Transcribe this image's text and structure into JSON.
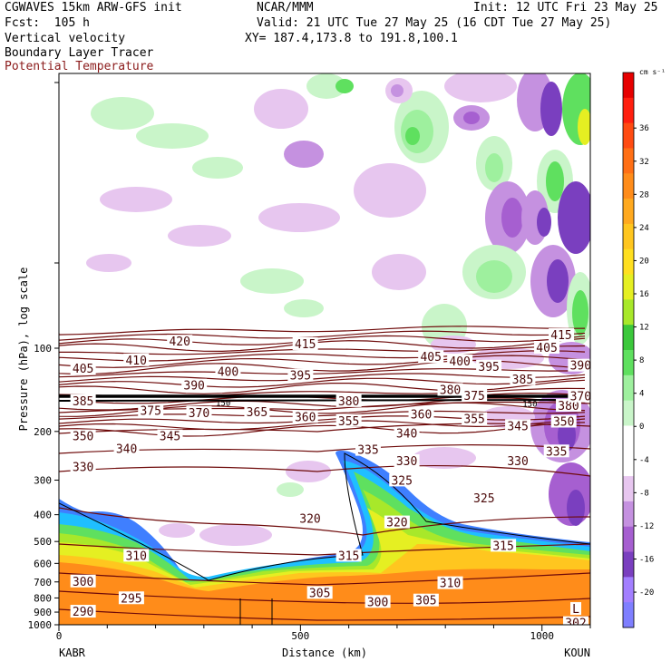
{
  "header": {
    "model_title": "CGWAVES 15km ARW-GFS init",
    "org": "NCAR/MMM",
    "init": "Init: 12 UTC Fri 23 May 25",
    "fcst": "Fcst:  105 h",
    "valid": "Valid: 21 UTC Tue 27 May 25 (16 CDT Tue 27 May 25)",
    "field1": "Vertical velocity",
    "field2": "Boundary Layer Tracer",
    "field3": "Potential Temperature",
    "xy": "XY= 187.4,173.8 to 191.8,100.1"
  },
  "colors": {
    "theta_line": "#6e0a0a",
    "bl_tracer_line": "#000000"
  },
  "chart_data": {
    "type": "heatmap",
    "xlabel": "Distance (km)",
    "ylabel": "Pressure (hPa), log scale",
    "x_ticks": [
      "0",
      "500",
      "1000"
    ],
    "x_tick_values": [
      0,
      500,
      1000
    ],
    "xlim": [
      0,
      1100
    ],
    "y_ticks": [
      "100",
      "200",
      "300",
      "400",
      "500",
      "600",
      "700",
      "800",
      "900",
      "1000"
    ],
    "y_tick_values": [
      100,
      200,
      300,
      400,
      500,
      600,
      700,
      800,
      900,
      1000
    ],
    "y_scale": "log",
    "endpoints": {
      "left": "KABR",
      "right": "KOUN"
    },
    "colorbar": {
      "unit": "cm s⁻¹",
      "labels": [
        "36",
        "32",
        "28",
        "24",
        "20",
        "16",
        "12",
        "8",
        "4",
        "0",
        "-4",
        "-8",
        "-12",
        "-16",
        "-20"
      ],
      "colors": [
        "#7f7fff",
        "#a37fff",
        "#7a3fbf",
        "#a65fd0",
        "#c591e0",
        "#e7c6ef",
        "#ffffff",
        "#ffffff",
        "#c9f5c9",
        "#9ef09e",
        "#5fe05f",
        "#3bc83b",
        "#a8e82a",
        "#e5ef22",
        "#ffdf20",
        "#ffc61f",
        "#ffa91f",
        "#ff8c1a",
        "#ff6f15",
        "#ff4b12",
        "#ff1f0f",
        "#e60000"
      ]
    },
    "theta_labels": [
      {
        "text": "420",
        "x": 250,
        "p": 95
      },
      {
        "text": "415",
        "x": 510,
        "p": 97
      },
      {
        "text": "415",
        "x": 1040,
        "p": 90
      },
      {
        "text": "410",
        "x": 160,
        "p": 111
      },
      {
        "text": "405",
        "x": 50,
        "p": 119
      },
      {
        "text": "405",
        "x": 770,
        "p": 108
      },
      {
        "text": "405",
        "x": 1010,
        "p": 100
      },
      {
        "text": "400",
        "x": 350,
        "p": 122
      },
      {
        "text": "400",
        "x": 830,
        "p": 112
      },
      {
        "text": "395",
        "x": 500,
        "p": 126
      },
      {
        "text": "395",
        "x": 890,
        "p": 117
      },
      {
        "text": "390",
        "x": 280,
        "p": 137
      },
      {
        "text": "390",
        "x": 1080,
        "p": 116
      },
      {
        "text": "385",
        "x": 50,
        "p": 156
      },
      {
        "text": "385",
        "x": 960,
        "p": 130
      },
      {
        "text": "380",
        "x": 600,
        "p": 156
      },
      {
        "text": "380",
        "x": 810,
        "p": 142
      },
      {
        "text": "380",
        "x": 1055,
        "p": 162
      },
      {
        "text": "375",
        "x": 190,
        "p": 169
      },
      {
        "text": "375",
        "x": 860,
        "p": 149
      },
      {
        "text": "370",
        "x": 290,
        "p": 172
      },
      {
        "text": "370",
        "x": 1080,
        "p": 150
      },
      {
        "text": "365",
        "x": 410,
        "p": 171
      },
      {
        "text": "360",
        "x": 510,
        "p": 178
      },
      {
        "text": "360",
        "x": 750,
        "p": 174
      },
      {
        "text": "355",
        "x": 600,
        "p": 184
      },
      {
        "text": "355",
        "x": 860,
        "p": 181
      },
      {
        "text": "350",
        "x": 50,
        "p": 209
      },
      {
        "text": "350",
        "x": 1045,
        "p": 185
      },
      {
        "text": "345",
        "x": 230,
        "p": 209
      },
      {
        "text": "345",
        "x": 950,
        "p": 192
      },
      {
        "text": "340",
        "x": 140,
        "p": 232
      },
      {
        "text": "340",
        "x": 720,
        "p": 204
      },
      {
        "text": "335",
        "x": 640,
        "p": 234
      },
      {
        "text": "335",
        "x": 1030,
        "p": 237
      },
      {
        "text": "330",
        "x": 50,
        "p": 270
      },
      {
        "text": "330",
        "x": 720,
        "p": 257
      },
      {
        "text": "330",
        "x": 950,
        "p": 257
      },
      {
        "text": "325",
        "x": 710,
        "p": 302
      },
      {
        "text": "325",
        "x": 880,
        "p": 350
      },
      {
        "text": "320",
        "x": 520,
        "p": 415
      },
      {
        "text": "320",
        "x": 700,
        "p": 428
      },
      {
        "text": "315",
        "x": 600,
        "p": 565
      },
      {
        "text": "315",
        "x": 920,
        "p": 520
      },
      {
        "text": "310",
        "x": 160,
        "p": 565
      },
      {
        "text": "310",
        "x": 810,
        "p": 710
      },
      {
        "text": "305",
        "x": 540,
        "p": 770
      },
      {
        "text": "305",
        "x": 760,
        "p": 820
      },
      {
        "text": "300",
        "x": 50,
        "p": 700
      },
      {
        "text": "300",
        "x": 660,
        "p": 830
      },
      {
        "text": "295",
        "x": 150,
        "p": 805
      },
      {
        "text": "290",
        "x": 50,
        "p": 900
      },
      {
        "text": "302",
        "x": 1070,
        "p": 990
      },
      {
        "text": "L",
        "x": 1070,
        "p": 880
      }
    ],
    "bl_tracer_labels": [
      {
        "text": "150",
        "x": 340,
        "p": 158
      },
      {
        "text": "150",
        "x": 975,
        "p": 159
      }
    ]
  }
}
